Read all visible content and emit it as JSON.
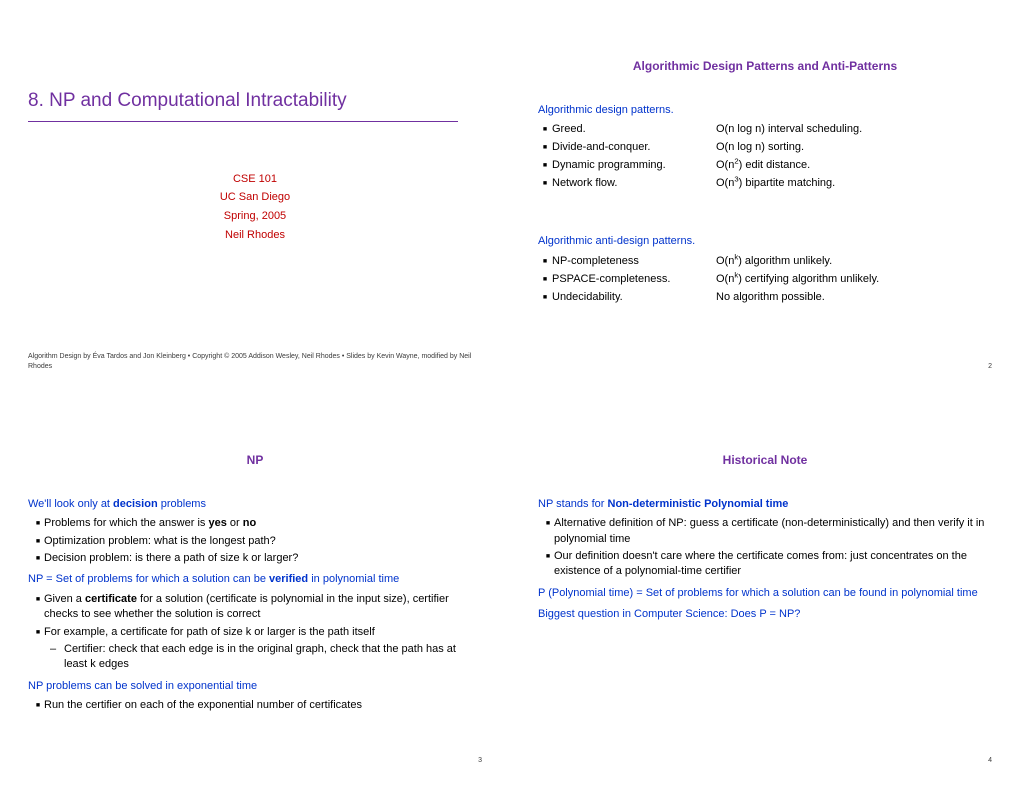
{
  "colors": {
    "purple": "#7030a0",
    "blue": "#0033cc",
    "red": "#c00000",
    "text": "#000000"
  },
  "slide1": {
    "title": "8.  NP and Computational Intractability",
    "credits": [
      "CSE 101",
      "UC San Diego",
      "Spring, 2005",
      "Neil Rhodes"
    ],
    "footnote": "Algorithm Design by Éva Tardos and Jon Kleinberg  •  Copyright © 2005 Addison Wesley, Neil Rhodes  •  Slides by Kevin Wayne, modified by Neil Rhodes"
  },
  "slide2": {
    "title": "Algorithmic Design Patterns and Anti-Patterns",
    "sec1": "Algorithmic design patterns.",
    "patterns": [
      {
        "name": "Greed.",
        "val": "O(n log n) interval scheduling."
      },
      {
        "name": "Divide-and-conquer.",
        "val": "O(n log n) sorting."
      },
      {
        "name": "Dynamic programming.",
        "val_html": "O(n<sup>2</sup>) edit distance."
      },
      {
        "name": "Network flow.",
        "val_html": "O(n<sup>3</sup>) bipartite matching."
      }
    ],
    "sec2": "Algorithmic anti-design patterns.",
    "antipatterns": [
      {
        "name": "NP-completeness",
        "val_html": "O(n<sup>k</sup>) algorithm unlikely."
      },
      {
        "name": "PSPACE-completeness.",
        "val_html": "O(n<sup>k</sup>) certifying algorithm unlikely."
      },
      {
        "name": "Undecidability.",
        "val": "No algorithm possible."
      }
    ],
    "pagenum": "2"
  },
  "slide3": {
    "title": "NP",
    "l1_pre": "We'll look only at ",
    "l1_bold": "decision",
    "l1_post": " problems",
    "b1_pre": "Problems for which the answer is ",
    "b1_bold1": "yes",
    "b1_mid": " or ",
    "b1_bold2": "no",
    "b2": "Optimization problem: what is the longest path?",
    "b3": "Decision problem: is there a path of size k or larger?",
    "l2_pre": "NP = Set of problems for which a  solution can be ",
    "l2_bold": "verified",
    "l2_post": " in polynomial time",
    "b4_pre": "Given a ",
    "b4_bold": "certificate",
    "b4_post": " for a solution (certificate is polynomial in the input size), certifier checks to see whether the solution is correct",
    "b5": "For example, a certificate for path of size k or larger is the path itself",
    "b5s": "Certifier: check that each edge is in the original graph, check that the path has at least k edges",
    "l3": "NP problems can be solved in exponential time",
    "b6": "Run the certifier on each of the exponential number of certificates",
    "pagenum": "3"
  },
  "slide4": {
    "title": "Historical Note",
    "l1_pre": "NP stands for ",
    "l1_bold": "Non-deterministic Polynomial time",
    "b1": "Alternative definition of NP: guess a certificate (non-deterministically) and then verify it in polynomial time",
    "b2": "Our definition doesn't care where the certificate comes from: just concentrates on the existence of a polynomial-time certifier",
    "l2": "P (Polynomial time) = Set of problems for which a solution can be found in polynomial time",
    "l3": "Biggest question in Computer Science: Does P = NP?",
    "pagenum": "4"
  }
}
